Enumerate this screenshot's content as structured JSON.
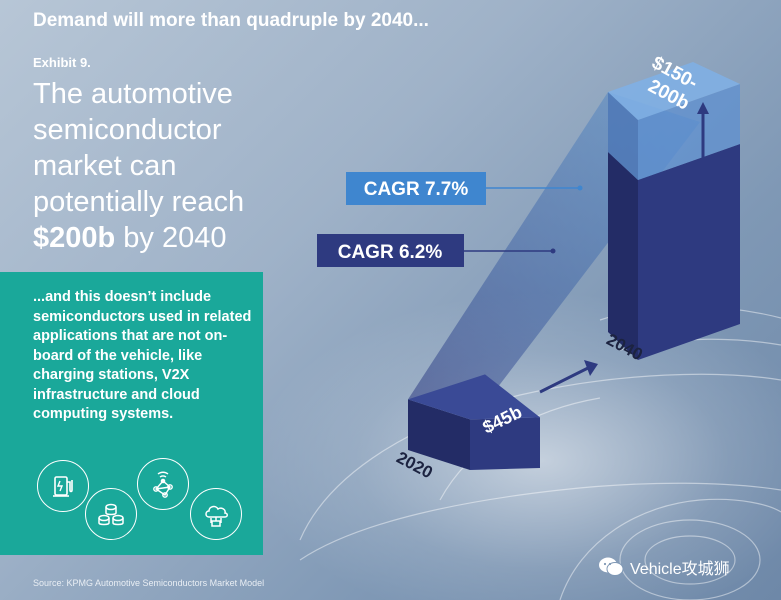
{
  "header": {
    "headline": "Demand will more than quadruple by 2040...",
    "exhibit": "Exhibit 9."
  },
  "title": {
    "text": "The automotive semiconductor market can potentially reach",
    "emphasis": "$200b",
    "suffix": "by 2040"
  },
  "note": {
    "text": "...and this doesn’t include semiconductors used in related applications that are not on-board of the vehicle, like charging stations, V2X infrastructure and cloud computing systems.",
    "icons": [
      "ev-charger-icon",
      "database-icon",
      "network-icon",
      "cloud-computing-icon"
    ]
  },
  "chart_data": {
    "type": "bar",
    "categories": [
      "2020",
      "2040"
    ],
    "values": [
      45,
      200
    ],
    "value_ranges": [
      [
        45,
        45
      ],
      [
        150,
        200
      ]
    ],
    "value_labels": [
      "$45b",
      "$150-200b"
    ],
    "cagr_labels": [
      "CAGR 7.7%",
      "CAGR 6.2%"
    ],
    "colors": {
      "bar_front": "#2e3a80",
      "bar_side": "#232c66",
      "bar_top": "#3a4a96",
      "range_front": "#5b8fd2",
      "range_side": "#4a74b6",
      "range_top": "#7fb0e6",
      "cagr_high_bg": "#3f86cf",
      "cagr_low_bg": "#2e3a80"
    }
  },
  "footer": {
    "source": "Source: KPMG Automotive Semiconductors Market Model",
    "watermark": "Vehicle攻城狮"
  }
}
